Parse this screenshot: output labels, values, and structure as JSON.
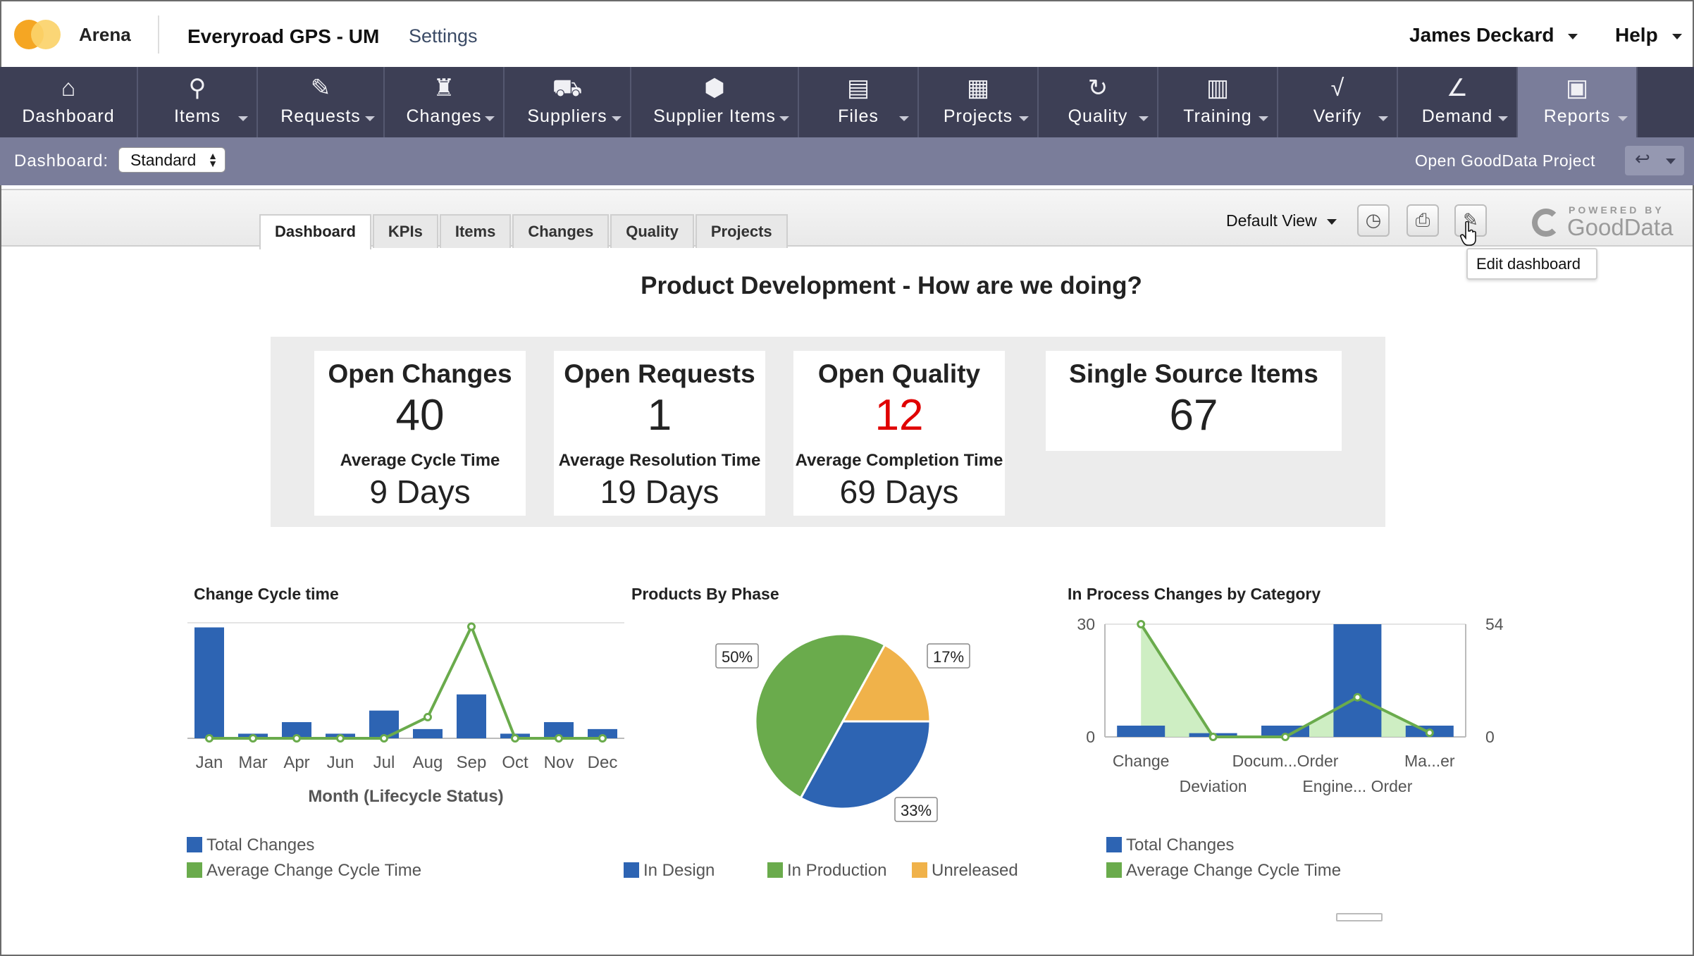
{
  "app": {
    "brand": "Arena",
    "workspace": "Everyroad GPS - UM",
    "settings_label": "Settings",
    "user_name": "James Deckard",
    "help_label": "Help"
  },
  "nav": [
    {
      "label": "Dashboard",
      "icon": "home-icon",
      "glyph": "⌂"
    },
    {
      "label": "Items",
      "icon": "items-icon",
      "glyph": "⚲"
    },
    {
      "label": "Requests",
      "icon": "edit-box-icon",
      "glyph": "✎"
    },
    {
      "label": "Changes",
      "icon": "stamp-icon",
      "glyph": "♜"
    },
    {
      "label": "Suppliers",
      "icon": "truck-icon",
      "glyph": "⛟"
    },
    {
      "label": "Supplier Items",
      "icon": "package-icon",
      "glyph": "⬢"
    },
    {
      "label": "Files",
      "icon": "file-icon",
      "glyph": "▤"
    },
    {
      "label": "Projects",
      "icon": "clipboard-icon",
      "glyph": "▦"
    },
    {
      "label": "Quality",
      "icon": "refresh-icon",
      "glyph": "↻"
    },
    {
      "label": "Training",
      "icon": "book-icon",
      "glyph": "▥"
    },
    {
      "label": "Verify",
      "icon": "check-v-icon",
      "glyph": "√"
    },
    {
      "label": "Demand",
      "icon": "line-chart-icon",
      "glyph": "∠"
    },
    {
      "label": "Reports",
      "icon": "bar-chart-icon",
      "glyph": "▣"
    }
  ],
  "subbar": {
    "dashboard_label": "Dashboard:",
    "dashboard_value": "Standard",
    "gooddata_link": "Open GoodData Project",
    "back_glyph": "↩"
  },
  "toolbar": {
    "tabs": [
      "Dashboard",
      "KPIs",
      "Items",
      "Changes",
      "Quality",
      "Projects"
    ],
    "view_label": "Default View",
    "powered_small": "POWERED BY",
    "powered_big": "GoodData",
    "tooltip": "Edit dashboard",
    "clock_glyph": "◷",
    "print_glyph": "⎙",
    "edit_glyph": "✎"
  },
  "headline": "Product Development - How are we doing?",
  "kpis": [
    {
      "title": "Open Changes",
      "value": "40",
      "sub_label": "Average Cycle Time",
      "sub_value": "9 Days",
      "color": "#222222"
    },
    {
      "title": "Open Requests",
      "value": "1",
      "sub_label": "Average Resolution Time",
      "sub_value": "19 Days",
      "color": "#222222"
    },
    {
      "title": "Open Quality",
      "value": "12",
      "sub_label": "Average Completion Time",
      "sub_value": "69 Days",
      "color": "#e00000"
    },
    {
      "title": "Single Source Items",
      "value": "67",
      "color": "#222222"
    }
  ],
  "colors": {
    "blue": "#2d64b3",
    "green": "#6aab4c",
    "orange": "#f0b24a",
    "light_green": "#c9ecbd"
  },
  "chart_data": [
    {
      "type": "bar",
      "title": "Change Cycle time",
      "xlabel": "Month (Lifecycle Status)",
      "categories": [
        "Jan",
        "Mar",
        "Apr",
        "Jun",
        "Jul",
        "Aug",
        "Sep",
        "Oct",
        "Nov",
        "Dec"
      ],
      "series": [
        {
          "name": "Total Changes",
          "type": "bar",
          "values": [
            48,
            2,
            7,
            2,
            12,
            4,
            19,
            2,
            7,
            4
          ]
        },
        {
          "name": "Average Change Cycle Time",
          "type": "line",
          "values": [
            0,
            0,
            0,
            0,
            0,
            11,
            58,
            0,
            0,
            0
          ]
        }
      ],
      "legend": "bottom-left"
    },
    {
      "type": "pie",
      "title": "Products By Phase",
      "series": [
        {
          "name": "In Design",
          "value": 33
        },
        {
          "name": "In Production",
          "value": 50
        },
        {
          "name": "Unreleased",
          "value": 17
        }
      ],
      "data_labels": [
        "33%",
        "50%",
        "17%"
      ],
      "legend": "bottom"
    },
    {
      "type": "bar",
      "title": "In Process Changes by Category",
      "categories": [
        "Change",
        "Deviation",
        "Docum...Order",
        "Engine... Order",
        "Ma...er"
      ],
      "y_ticks_left": [
        "30",
        "0"
      ],
      "y_ticks_right": [
        "54",
        "0"
      ],
      "ylim_left": [
        0,
        30
      ],
      "ylim_right": [
        0,
        54
      ],
      "series": [
        {
          "name": "Total Changes",
          "type": "bar",
          "axis": "left",
          "values": [
            3,
            1,
            3,
            30,
            3
          ]
        },
        {
          "name": "Average Change Cycle Time",
          "type": "line",
          "axis": "right",
          "values": [
            54,
            0,
            0,
            19,
            2
          ]
        }
      ],
      "legend": "bottom-left"
    }
  ]
}
